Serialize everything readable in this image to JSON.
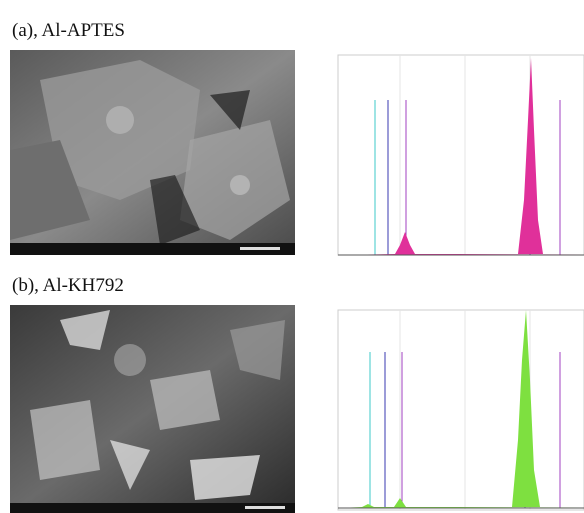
{
  "panels": [
    {
      "label": "(a), Al-APTES"
    },
    {
      "label": "(b), Al-KH792"
    }
  ]
}
